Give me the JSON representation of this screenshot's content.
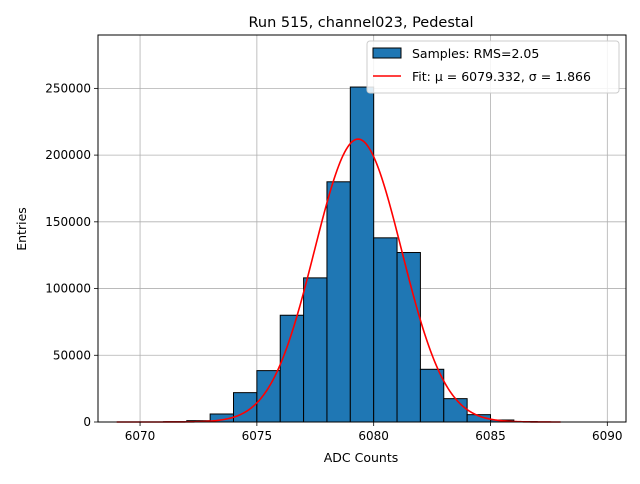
{
  "chart_data": {
    "type": "bar",
    "title": "Run 515, channel023, Pedestal",
    "xlabel": "ADC Counts",
    "ylabel": "Entries",
    "xlim": [
      6068.2,
      6090.8
    ],
    "ylim": [
      0,
      290000
    ],
    "xticks": [
      6070,
      6075,
      6080,
      6085,
      6090
    ],
    "yticks": [
      0,
      50000,
      100000,
      150000,
      200000,
      250000
    ],
    "grid": true,
    "legend_position": "top-right",
    "series": [
      {
        "name": "Samples: RMS=2.05",
        "kind": "histogram",
        "color": "#1f77b4",
        "edgecolor": "#000000",
        "bin_width": 1,
        "bin_starts": [
          6069,
          6070,
          6071,
          6072,
          6073,
          6074,
          6075,
          6076,
          6077,
          6078,
          6079,
          6080,
          6081,
          6082,
          6083,
          6084,
          6085,
          6086,
          6087
        ],
        "values": [
          0,
          0,
          200,
          1000,
          6000,
          22000,
          38500,
          80000,
          108000,
          180000,
          251000,
          138000,
          127000,
          39500,
          17500,
          5500,
          1500,
          300,
          0
        ]
      },
      {
        "name": "Fit: μ = 6079.332, σ = 1.866",
        "kind": "gaussian_fit",
        "color": "#ff0000",
        "mu": 6079.332,
        "sigma": 1.866,
        "amplitude": 212000,
        "x_range": [
          6069,
          6088
        ]
      }
    ]
  }
}
